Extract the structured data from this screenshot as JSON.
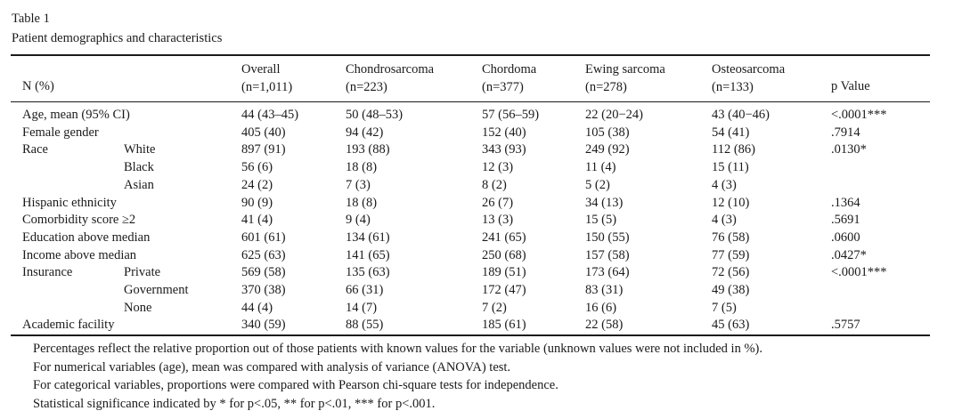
{
  "caption": {
    "label": "Table  1",
    "title": "Patient demographics and characteristics"
  },
  "header": {
    "row_label": "N (%)",
    "columns": [
      {
        "name": "Overall",
        "n": "(n=1,011)"
      },
      {
        "name": "Chondrosarcoma",
        "n": "(n=223)"
      },
      {
        "name": "Chordoma",
        "n": "(n=377)"
      },
      {
        "name": "Ewing sarcoma",
        "n": "(n=278)"
      },
      {
        "name": "Osteosarcoma",
        "n": "(n=133)"
      }
    ],
    "pvalue": "p Value"
  },
  "rows": [
    {
      "label": "Age, mean (95% CI)",
      "sub": "",
      "values": [
        "44 (43–45)",
        "50 (48–53)",
        "57 (56–59)",
        "22 (20−24)",
        "43 (40−46)"
      ],
      "p": "<.0001***"
    },
    {
      "label": "Female gender",
      "sub": "",
      "values": [
        "405 (40)",
        "94 (42)",
        "152 (40)",
        "105 (38)",
        "54 (41)"
      ],
      "p": ".7914"
    },
    {
      "label": "Race",
      "sub": "White",
      "values": [
        "897 (91)",
        "193 (88)",
        "343 (93)",
        "249 (92)",
        "112 (86)"
      ],
      "p": ".0130*"
    },
    {
      "label": "",
      "sub": "Black",
      "values": [
        "56 (6)",
        "18 (8)",
        "12 (3)",
        "11 (4)",
        "15 (11)"
      ],
      "p": ""
    },
    {
      "label": "",
      "sub": "Asian",
      "values": [
        "24 (2)",
        "7 (3)",
        "8 (2)",
        "5 (2)",
        "4 (3)"
      ],
      "p": ""
    },
    {
      "label": "Hispanic ethnicity",
      "sub": "",
      "values": [
        "90 (9)",
        "18 (8)",
        "26 (7)",
        "34 (13)",
        "12 (10)"
      ],
      "p": ".1364"
    },
    {
      "label": "Comorbidity score ≥2",
      "sub": "",
      "values": [
        "41 (4)",
        "9 (4)",
        "13 (3)",
        "15 (5)",
        "4 (3)"
      ],
      "p": ".5691"
    },
    {
      "label": "Education above median",
      "sub": "",
      "values": [
        "601 (61)",
        "134 (61)",
        "241 (65)",
        "150 (55)",
        "76 (58)"
      ],
      "p": ".0600"
    },
    {
      "label": "Income above median",
      "sub": "",
      "values": [
        "625 (63)",
        "141 (65)",
        "250 (68)",
        "157 (58)",
        "77 (59)"
      ],
      "p": ".0427*"
    },
    {
      "label": "Insurance",
      "sub": "Private",
      "values": [
        "569 (58)",
        "135 (63)",
        "189 (51)",
        "173 (64)",
        "72 (56)"
      ],
      "p": "<.0001***"
    },
    {
      "label": "",
      "sub": "Government",
      "values": [
        "370 (38)",
        "66 (31)",
        "172 (47)",
        "83 (31)",
        "49 (38)"
      ],
      "p": ""
    },
    {
      "label": "",
      "sub": "None",
      "values": [
        "44 (4)",
        "14 (7)",
        "7 (2)",
        "16 (6)",
        "7 (5)"
      ],
      "p": ""
    },
    {
      "label": "Academic facility",
      "sub": "",
      "values": [
        "340 (59)",
        "88 (55)",
        "185 (61)",
        "22 (58)",
        "45 (63)"
      ],
      "p": ".5757"
    }
  ],
  "notes": [
    "Percentages reflect the relative proportion out of those patients with known values for the variable (unknown values were not included in %).",
    "For numerical variables (age), mean was compared with analysis of variance (ANOVA) test.",
    "For categorical variables, proportions were compared with Pearson chi-square tests for independence.",
    "Statistical significance indicated by * for p<.05, ** for p<.01, *** for p<.001."
  ]
}
